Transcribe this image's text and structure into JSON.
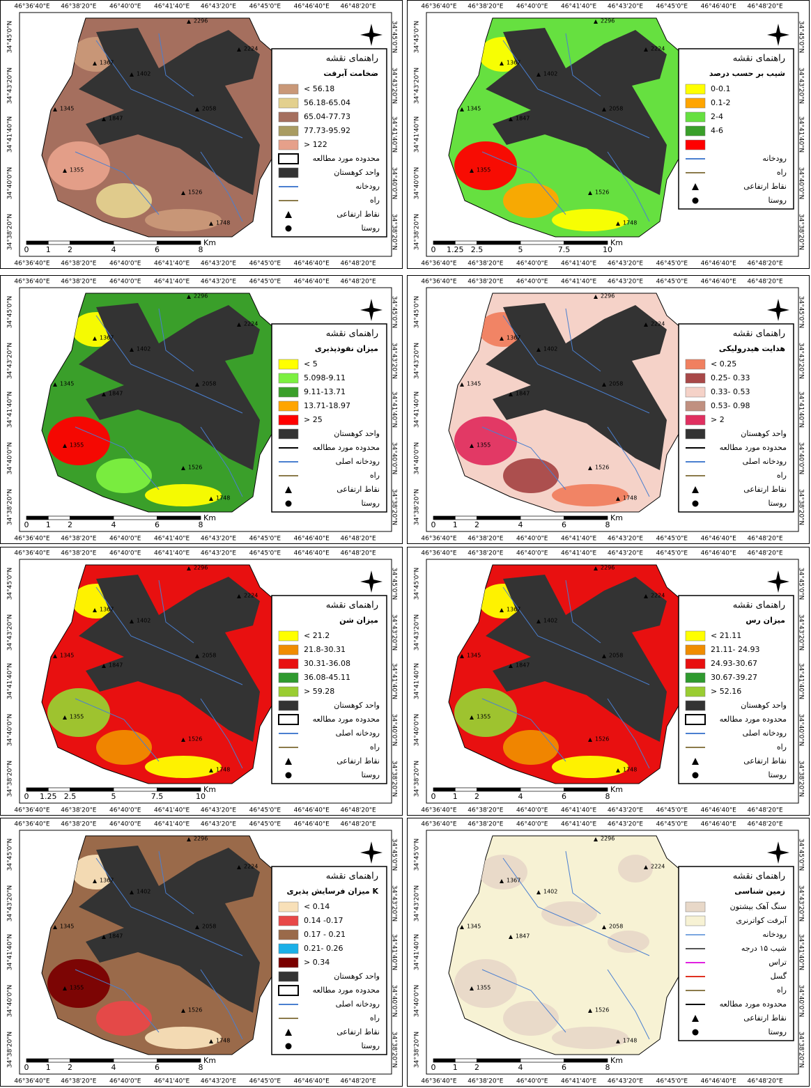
{
  "map_grid": {
    "lon_labels": [
      "46°36'40\"E",
      "46°38'20\"E",
      "46°40'0\"E",
      "46°41'40\"E",
      "46°43'20\"E",
      "46°45'0\"E",
      "46°46'40\"E",
      "46°48'20\"E"
    ],
    "lat_labels": [
      "34°45'0\"N",
      "34°43'20\"N",
      "34°41'40\"N",
      "34°40'0\"N",
      "34°38'20\"N"
    ]
  },
  "elevation_points": [
    2296,
    2224,
    1367,
    1402,
    1345,
    1847,
    2058,
    1355,
    1526,
    1748
  ],
  "legend_header": "راهنمای نقشه",
  "panels": [
    {
      "legend_title": "ضخامت آبرفت",
      "scale": [
        0,
        1,
        2,
        4,
        6,
        8
      ],
      "scale_unit": "Km",
      "items": [
        {
          "label": "< 56.18",
          "kind": "fill",
          "color": "#c99878"
        },
        {
          "label": "56.18-65.04",
          "kind": "fill",
          "color": "#e3d08e"
        },
        {
          "label": "65.04-77.73",
          "kind": "fill",
          "color": "#a56f5e"
        },
        {
          "label": "77.73-95.92",
          "kind": "fill",
          "color": "#a99c62"
        },
        {
          "label": "> 122",
          "kind": "fill",
          "color": "#e6a08a"
        },
        {
          "label": "محدوده مورد مطالعه",
          "kind": "outline",
          "color": "#000000"
        },
        {
          "label": "واحد کوهستان",
          "kind": "fill",
          "color": "#333333"
        },
        {
          "label": "رودخانه",
          "kind": "line",
          "color": "#4a7fd0"
        },
        {
          "label": "راه",
          "kind": "line",
          "color": "#8b7a4a"
        },
        {
          "label": "نقاط ارتفاعی",
          "kind": "triangle",
          "color": "#000000"
        },
        {
          "label": "روستا",
          "kind": "dot",
          "color": "#000000"
        }
      ]
    },
    {
      "legend_title": "شیب بر حسب درصد",
      "scale": [
        0,
        1.25,
        2.5,
        5,
        7.5,
        10
      ],
      "scale_unit": "Km",
      "items": [
        {
          "label": "0-0.1",
          "kind": "fill",
          "color": "#ffff00"
        },
        {
          "label": "0.1-2",
          "kind": "fill",
          "color": "#ffa500"
        },
        {
          "label": "2-4",
          "kind": "fill",
          "color": "#66e040"
        },
        {
          "label": "4-6",
          "kind": "fill",
          "color": "#3a9f2a"
        },
        {
          "label": null,
          "kind": "fill",
          "color": "#ff0000"
        },
        {
          "label": "رودخانه",
          "kind": "line",
          "color": "#4a7fd0"
        },
        {
          "label": "راه",
          "kind": "line",
          "color": "#8b7a4a"
        },
        {
          "label": "نقاط ارتفاعی",
          "kind": "triangle",
          "color": "#000000"
        },
        {
          "label": "روستا",
          "kind": "dot",
          "color": "#000000"
        }
      ]
    },
    {
      "legend_title": "میزان نفوذپذیری",
      "scale": [
        0,
        1,
        2,
        4,
        6,
        8
      ],
      "scale_unit": "Km",
      "items": [
        {
          "label": "< 5",
          "kind": "fill",
          "color": "#ffff00"
        },
        {
          "label": "5.098-9.11",
          "kind": "fill",
          "color": "#7cf040"
        },
        {
          "label": "9.11-13.71",
          "kind": "fill",
          "color": "#3a9f2a"
        },
        {
          "label": "13.71-18.97",
          "kind": "fill",
          "color": "#ffa500"
        },
        {
          "label": "> 25",
          "kind": "fill",
          "color": "#ff0000"
        },
        {
          "label": "واحد کوهستان",
          "kind": "fill",
          "color": "#333333"
        },
        {
          "label": "محدوده مورد مطالعه",
          "kind": "line",
          "color": "#000000"
        },
        {
          "label": "رودخانه اصلی",
          "kind": "line",
          "color": "#4a7fd0"
        },
        {
          "label": "راه",
          "kind": "line",
          "color": "#8b7a4a"
        },
        {
          "label": "نقاط ارتفاعی",
          "kind": "triangle",
          "color": "#000000"
        },
        {
          "label": "روستا",
          "kind": "dot",
          "color": "#000000"
        }
      ]
    },
    {
      "legend_title": "هدایت هیدرولیکی",
      "scale": [
        0,
        1,
        2,
        4,
        6,
        8
      ],
      "scale_unit": "Km",
      "items": [
        {
          "label": "< 0.25",
          "kind": "fill",
          "color": "#f08060"
        },
        {
          "label": "0.25- 0.33",
          "kind": "fill",
          "color": "#a84848"
        },
        {
          "label": "0.33- 0.53",
          "kind": "fill",
          "color": "#f5d2c8"
        },
        {
          "label": "0.53- 0.98",
          "kind": "fill",
          "color": "#c09080"
        },
        {
          "label": "> 2",
          "kind": "fill",
          "color": "#e03060"
        },
        {
          "label": "واحد کوهستان",
          "kind": "fill",
          "color": "#333333"
        },
        {
          "label": "محدوده مورد مطالعه",
          "kind": "line",
          "color": "#000000"
        },
        {
          "label": "رودخانه اصلی",
          "kind": "line",
          "color": "#4a7fd0"
        },
        {
          "label": "راه",
          "kind": "line",
          "color": "#8b7a4a"
        },
        {
          "label": "نقاط ارتفاعی",
          "kind": "triangle",
          "color": "#000000"
        },
        {
          "label": "روستا",
          "kind": "dot",
          "color": "#000000"
        }
      ]
    },
    {
      "legend_title": "میزان شن",
      "scale": [
        0,
        1.25,
        2.5,
        5,
        7.5,
        10
      ],
      "scale_unit": "Km",
      "items": [
        {
          "label": "< 21.2",
          "kind": "fill",
          "color": "#ffff00"
        },
        {
          "label": "21.8-30.31",
          "kind": "fill",
          "color": "#f08c00"
        },
        {
          "label": "30.31-36.08",
          "kind": "fill",
          "color": "#e81010"
        },
        {
          "label": "36.08-45.11",
          "kind": "fill",
          "color": "#2f9a2f"
        },
        {
          "label": "> 59.28",
          "kind": "fill",
          "color": "#9acd32"
        },
        {
          "label": "واحد کوهستان",
          "kind": "fill",
          "color": "#333333"
        },
        {
          "label": "محدوده مورد مطالعه",
          "kind": "outline",
          "color": "#000000"
        },
        {
          "label": "رودخانه اصلی",
          "kind": "line",
          "color": "#4a7fd0"
        },
        {
          "label": "راه",
          "kind": "line",
          "color": "#8b7a4a"
        },
        {
          "label": "نقاط ارتفاعی",
          "kind": "triangle",
          "color": "#000000"
        },
        {
          "label": "روستا",
          "kind": "dot",
          "color": "#000000"
        }
      ]
    },
    {
      "legend_title": "میزان رس",
      "scale": [
        0,
        1,
        2,
        4,
        6,
        8
      ],
      "scale_unit": "Km",
      "items": [
        {
          "label": "< 21.11",
          "kind": "fill",
          "color": "#ffff00"
        },
        {
          "label": "21.11- 24.93",
          "kind": "fill",
          "color": "#f08c00"
        },
        {
          "label": "24.93-30.67",
          "kind": "fill",
          "color": "#e81010"
        },
        {
          "label": "30.67-39.27",
          "kind": "fill",
          "color": "#2f9a2f"
        },
        {
          "label": "> 52.16",
          "kind": "fill",
          "color": "#9acd32"
        },
        {
          "label": "واحد کوهستان",
          "kind": "fill",
          "color": "#333333"
        },
        {
          "label": "محدوده مورد مطالعه",
          "kind": "outline",
          "color": "#000000"
        },
        {
          "label": "رودخانه اصلی",
          "kind": "line",
          "color": "#4a7fd0"
        },
        {
          "label": "راه",
          "kind": "line",
          "color": "#8b7a4a"
        },
        {
          "label": "نقاط ارتفاعی",
          "kind": "triangle",
          "color": "#000000"
        },
        {
          "label": "روستا",
          "kind": "dot",
          "color": "#000000"
        }
      ]
    },
    {
      "legend_title": "میزان فرسایش پذیری K",
      "scale": [
        0,
        1,
        2,
        4,
        6,
        8
      ],
      "scale_unit": "Km",
      "items": [
        {
          "label": "< 0.14",
          "kind": "fill",
          "color": "#f8e0b8"
        },
        {
          "label": "0.14 -0.17",
          "kind": "fill",
          "color": "#e84848"
        },
        {
          "label": "0.17 - 0.21",
          "kind": "fill",
          "color": "#9a6a4a"
        },
        {
          "label": "0.21- 0.26",
          "kind": "fill",
          "color": "#1ab0e8"
        },
        {
          "label": "> 0.34",
          "kind": "fill",
          "color": "#7a0000"
        },
        {
          "label": "واحد کوهستان",
          "kind": "fill",
          "color": "#333333"
        },
        {
          "label": "محدوده مورد مطالعه",
          "kind": "outline",
          "color": "#000000"
        },
        {
          "label": "رودخانه اصلی",
          "kind": "line",
          "color": "#4a7fd0"
        },
        {
          "label": "راه",
          "kind": "line",
          "color": "#8b7a4a"
        },
        {
          "label": "نقاط ارتفاعی",
          "kind": "triangle",
          "color": "#000000"
        },
        {
          "label": "روستا",
          "kind": "dot",
          "color": "#000000"
        }
      ]
    },
    {
      "legend_title": "زمین شناسی",
      "scale": [
        0,
        1,
        2,
        4,
        6,
        8
      ],
      "scale_unit": "Km",
      "items": [
        {
          "label": "سنگ آهک بیشتون",
          "kind": "fill",
          "color": "#e8d8c8"
        },
        {
          "label": "آبرفت کواترنری",
          "kind": "fill",
          "color": "#f7f2d4"
        },
        {
          "label": "رودخانه",
          "kind": "line",
          "color": "#7aa6e0"
        },
        {
          "label": "شیب ۱۵ درجه",
          "kind": "line",
          "color": "#555555"
        },
        {
          "label": "تراس",
          "kind": "line",
          "color": "#e020e0"
        },
        {
          "label": "گسل",
          "kind": "line",
          "color": "#e03020"
        },
        {
          "label": "راه",
          "kind": "line",
          "color": "#8b7a4a"
        },
        {
          "label": "محدوده مورد مطالعه",
          "kind": "line",
          "color": "#000000"
        },
        {
          "label": "نقاط ارتفاعی",
          "kind": "triangle",
          "color": "#000000"
        },
        {
          "label": "روستا",
          "kind": "dot",
          "color": "#000000"
        }
      ]
    }
  ]
}
